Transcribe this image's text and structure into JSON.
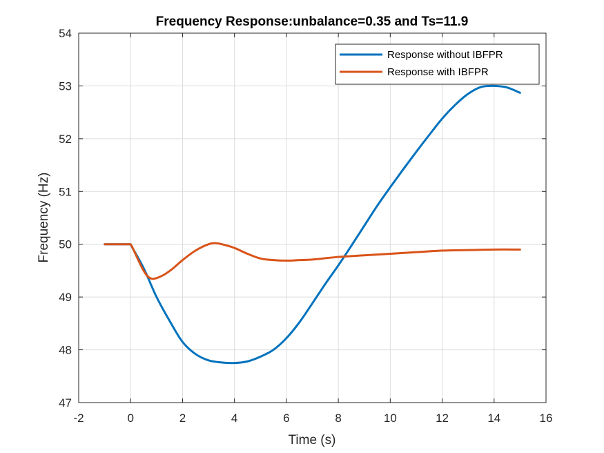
{
  "chart_data": {
    "type": "line",
    "title": "Frequency Response:unbalance=0.35 and Ts=11.9",
    "xlabel": "Time (s)",
    "ylabel": "Frequency (Hz)",
    "xlim": [
      -2,
      16
    ],
    "ylim": [
      47,
      54
    ],
    "xticks": [
      -2,
      0,
      2,
      4,
      6,
      8,
      10,
      12,
      14,
      16
    ],
    "yticks": [
      47,
      48,
      49,
      50,
      51,
      52,
      53,
      54
    ],
    "xtick_labels": [
      "-2",
      "0",
      "2",
      "4",
      "6",
      "8",
      "10",
      "12",
      "14",
      "16"
    ],
    "ytick_labels": [
      "47",
      "48",
      "49",
      "50",
      "51",
      "52",
      "53",
      "54"
    ],
    "grid": true,
    "legend_position": "top-right",
    "series": [
      {
        "name": "Response without IBFPR",
        "color": "#0072BD",
        "x": [
          -1,
          0,
          0.05,
          0.5,
          1,
          1.5,
          2,
          2.5,
          3,
          3.5,
          4,
          4.5,
          5,
          5.5,
          6,
          6.5,
          7,
          7.5,
          8,
          8.5,
          9,
          9.5,
          10,
          10.5,
          11,
          11.5,
          12,
          12.5,
          13,
          13.5,
          14,
          14.5,
          15
        ],
        "y": [
          50,
          50,
          49.95,
          49.55,
          49.0,
          48.55,
          48.15,
          47.92,
          47.8,
          47.76,
          47.75,
          47.78,
          47.87,
          48.0,
          48.22,
          48.52,
          48.88,
          49.25,
          49.6,
          49.97,
          50.35,
          50.73,
          51.08,
          51.42,
          51.75,
          52.07,
          52.38,
          52.64,
          52.85,
          52.98,
          53.0,
          52.97,
          52.87
        ]
      },
      {
        "name": "Response with IBFPR",
        "color": "#D95319",
        "x": [
          -1,
          0,
          0.05,
          0.5,
          0.8,
          1.2,
          1.6,
          2,
          2.5,
          3,
          3.3,
          3.6,
          4,
          4.5,
          5,
          5.5,
          6,
          6.5,
          7,
          8,
          9,
          10,
          11,
          12,
          13,
          14,
          15
        ],
        "y": [
          50,
          50,
          49.96,
          49.5,
          49.35,
          49.4,
          49.53,
          49.7,
          49.88,
          50.0,
          50.02,
          49.99,
          49.93,
          49.82,
          49.73,
          49.7,
          49.69,
          49.7,
          49.71,
          49.76,
          49.79,
          49.82,
          49.85,
          49.88,
          49.89,
          49.9,
          49.9
        ]
      }
    ]
  }
}
